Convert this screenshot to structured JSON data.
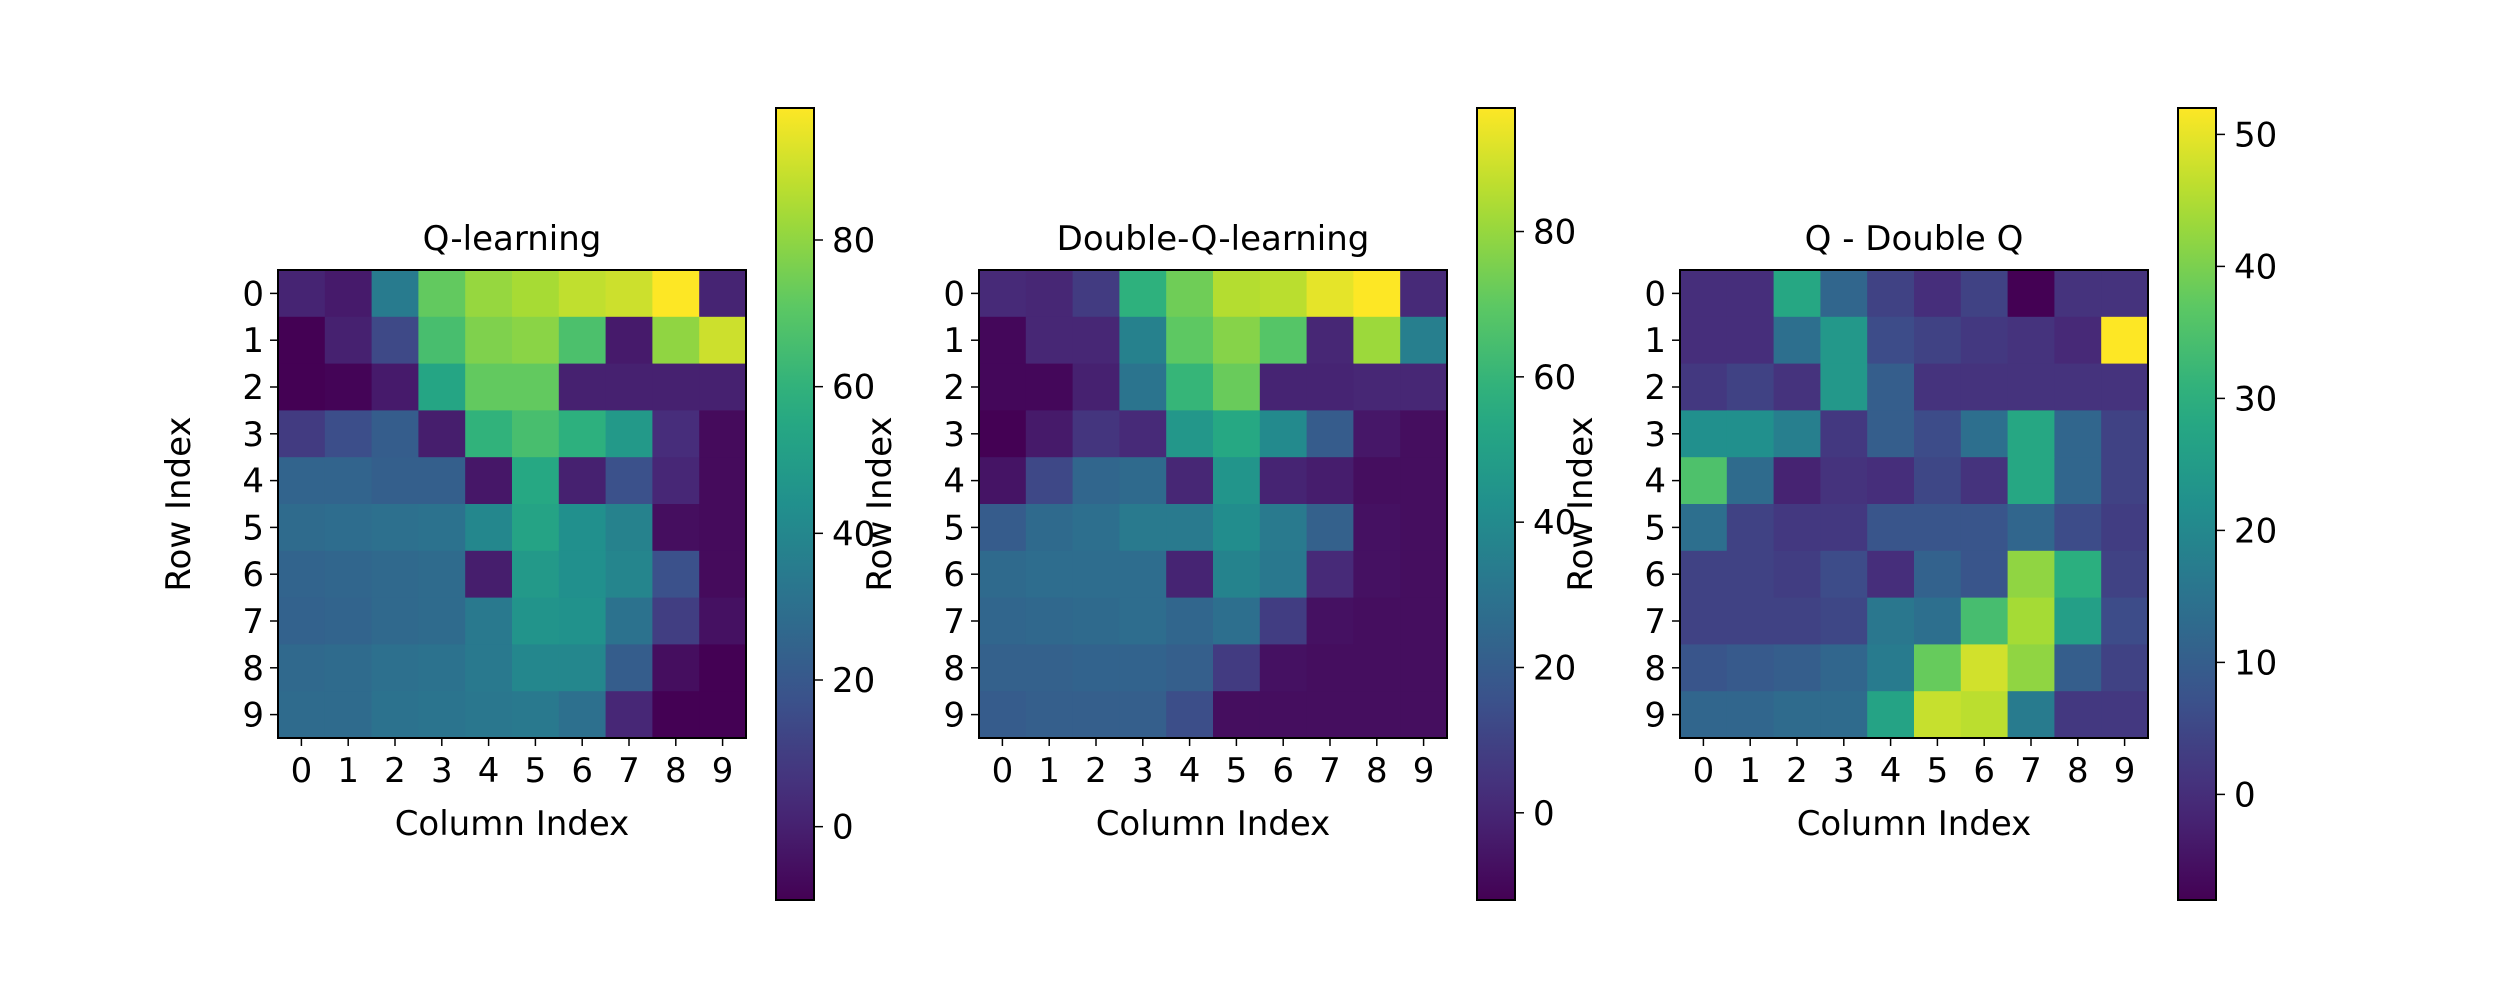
{
  "figure": {
    "background": "#ffffff",
    "colormap": "viridis"
  },
  "chart_data": [
    {
      "type": "heatmap",
      "title": "Q-learning",
      "xlabel": "Column Index",
      "ylabel": "Row Index",
      "x_ticks": [
        "0",
        "1",
        "2",
        "3",
        "4",
        "5",
        "6",
        "7",
        "8",
        "9"
      ],
      "y_ticks": [
        "0",
        "1",
        "2",
        "3",
        "4",
        "5",
        "6",
        "7",
        "8",
        "9"
      ],
      "colorbar": {
        "range": [
          -10,
          98
        ],
        "ticks": [
          0,
          20,
          40,
          60,
          80
        ]
      },
      "matrix": [
        [
          1,
          -2,
          35,
          72,
          81,
          84,
          88,
          90,
          98,
          1
        ],
        [
          -10,
          0,
          14,
          66,
          77,
          79,
          67,
          -2,
          80,
          90
        ],
        [
          -10,
          -9,
          -2,
          54,
          72,
          72,
          0,
          0,
          0,
          0
        ],
        [
          9,
          16,
          22,
          -1,
          60,
          66,
          59,
          48,
          4,
          -7
        ],
        [
          25,
          25,
          23,
          23,
          -3,
          55,
          0,
          17,
          2,
          -7
        ],
        [
          28,
          29,
          30,
          31,
          40,
          53,
          44,
          38,
          -6,
          -7
        ],
        [
          25,
          26,
          27,
          28,
          -1,
          48,
          44,
          39,
          17,
          -7
        ],
        [
          24,
          25,
          27,
          28,
          34,
          46,
          45,
          31,
          10,
          -5
        ],
        [
          27,
          28,
          30,
          31,
          34,
          40,
          40,
          22,
          -6,
          -10
        ],
        [
          28,
          28,
          31,
          32,
          33,
          34,
          30,
          2,
          -10,
          -10
        ]
      ]
    },
    {
      "type": "heatmap",
      "title": "Double-Q-learning",
      "xlabel": "Column Index",
      "ylabel": "Row Index",
      "x_ticks": [
        "0",
        "1",
        "2",
        "3",
        "4",
        "5",
        "6",
        "7",
        "8",
        "9"
      ],
      "y_ticks": [
        "0",
        "1",
        "2",
        "3",
        "4",
        "5",
        "6",
        "7",
        "8",
        "9"
      ],
      "colorbar": {
        "range": [
          -12,
          97
        ],
        "ticks": [
          0,
          20,
          40,
          60,
          80
        ]
      },
      "matrix": [
        [
          1,
          0,
          7,
          58,
          73,
          85,
          86,
          93,
          97,
          1
        ],
        [
          -10,
          0,
          0,
          36,
          70,
          77,
          68,
          0,
          81,
          35
        ],
        [
          -10,
          -10,
          -2,
          30,
          60,
          72,
          -1,
          -1,
          0,
          0
        ],
        [
          -12,
          -4,
          5,
          1,
          46,
          54,
          40,
          20,
          -5,
          -8
        ],
        [
          -6,
          12,
          24,
          26,
          0,
          45,
          -1,
          -3,
          -8,
          -8
        ],
        [
          20,
          26,
          28,
          33,
          33,
          41,
          33,
          22,
          -7,
          -8
        ],
        [
          26,
          27,
          27,
          27,
          -1,
          37,
          32,
          1,
          -7,
          -8
        ],
        [
          24,
          25,
          26,
          27,
          24,
          28,
          8,
          -7,
          -8,
          -8
        ],
        [
          22,
          22,
          23,
          23,
          21,
          7,
          -7,
          -8,
          -8,
          -8
        ],
        [
          20,
          21,
          21,
          21,
          14,
          -8,
          -8,
          -8,
          -8,
          -8
        ]
      ]
    },
    {
      "type": "heatmap",
      "title": "Q - Double Q",
      "xlabel": "Column Index",
      "ylabel": "Row Index",
      "x_ticks": [
        "0",
        "1",
        "2",
        "3",
        "4",
        "5",
        "6",
        "7",
        "8",
        "9"
      ],
      "y_ticks": [
        "0",
        "1",
        "2",
        "3",
        "4",
        "5",
        "6",
        "7",
        "8",
        "9"
      ],
      "colorbar": {
        "range": [
          -8,
          52
        ],
        "ticks": [
          0,
          10,
          20,
          30,
          40,
          50
        ]
      },
      "matrix": [
        [
          0,
          0,
          28,
          12,
          4,
          0,
          4,
          -8,
          1,
          1
        ],
        [
          0,
          0,
          14,
          24,
          6,
          4,
          2,
          1,
          -1,
          52
        ],
        [
          2,
          4,
          1,
          24,
          10,
          1,
          1,
          1,
          1,
          1
        ],
        [
          22,
          22,
          18,
          2,
          10,
          6,
          14,
          28,
          12,
          4
        ],
        [
          35,
          13,
          -2,
          1,
          0,
          5,
          1,
          28,
          12,
          4
        ],
        [
          14,
          4,
          2,
          2,
          8,
          8,
          8,
          12,
          6,
          3
        ],
        [
          4,
          4,
          3,
          6,
          0,
          11,
          8,
          42,
          30,
          4
        ],
        [
          4,
          4,
          4,
          5,
          16,
          14,
          34,
          44,
          26,
          6
        ],
        [
          8,
          9,
          10,
          12,
          17,
          38,
          48,
          42,
          10,
          4
        ],
        [
          12,
          12,
          13,
          13,
          27,
          47,
          46,
          17,
          2,
          2
        ]
      ]
    }
  ]
}
